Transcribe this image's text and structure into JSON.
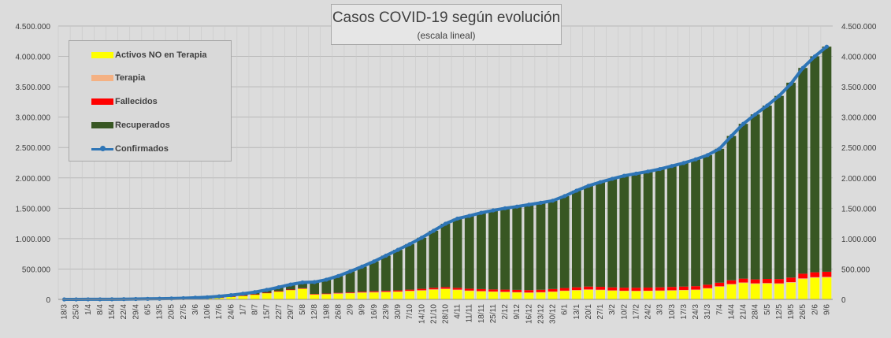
{
  "chart_data": {
    "type": "bar",
    "stacked": true,
    "title": "Casos COVID-19 según evolución",
    "subtitle": "(escala lineal)",
    "ylim": [
      0,
      4500000
    ],
    "y_ticks": [
      "0",
      "500.000",
      "1.000.000",
      "1.500.000",
      "2.000.000",
      "2.500.000",
      "3.000.000",
      "3.500.000",
      "4.000.000",
      "4.500.000"
    ],
    "y_tick_values": [
      0,
      500000,
      1000000,
      1500000,
      2000000,
      2500000,
      3000000,
      3500000,
      4000000,
      4500000
    ],
    "grid": true,
    "legend_position": "top-left",
    "categories": [
      "18/3",
      "25/3",
      "1/4",
      "8/4",
      "15/4",
      "22/4",
      "29/4",
      "6/5",
      "13/5",
      "20/5",
      "27/5",
      "3/6",
      "10/6",
      "17/6",
      "24/6",
      "1/7",
      "8/7",
      "15/7",
      "22/7",
      "29/7",
      "5/8",
      "12/8",
      "19/8",
      "26/8",
      "2/9",
      "9/9",
      "16/9",
      "23/9",
      "30/9",
      "7/10",
      "14/10",
      "21/10",
      "28/10",
      "4/11",
      "11/11",
      "18/11",
      "25/11",
      "2/12",
      "9/12",
      "16/12",
      "23/12",
      "30/12",
      "6/1",
      "13/1",
      "20/1",
      "27/1",
      "3/2",
      "10/2",
      "17/2",
      "24/2",
      "3/3",
      "10/3",
      "17/3",
      "24/3",
      "31/3",
      "7/4",
      "14/4",
      "21/4",
      "28/4",
      "5/5",
      "12/5",
      "19/5",
      "26/5",
      "2/6",
      "9/6"
    ],
    "series": [
      {
        "name": "Activos NO en Terapia",
        "color": "#ffff00",
        "kind": "bar",
        "values": [
          0,
          0,
          0,
          0,
          1000,
          2000,
          3000,
          4000,
          5000,
          7000,
          10000,
          15000,
          20000,
          30000,
          45000,
          60000,
          80000,
          105000,
          130000,
          155000,
          175000,
          80000,
          85000,
          95000,
          100000,
          110000,
          115000,
          120000,
          125000,
          135000,
          145000,
          160000,
          170000,
          155000,
          140000,
          132000,
          125000,
          120000,
          115000,
          110000,
          115000,
          125000,
          140000,
          150000,
          160000,
          155000,
          145000,
          140000,
          138000,
          140000,
          143000,
          148000,
          153000,
          158000,
          180000,
          210000,
          245000,
          270000,
          255000,
          260000,
          255000,
          275000,
          335000,
          355000,
          360000
        ]
      },
      {
        "name": "Terapia",
        "color": "#f4b183",
        "kind": "bar",
        "values": [
          0,
          0,
          0,
          0,
          0,
          0,
          0,
          0,
          0,
          0,
          0,
          1000,
          1000,
          2000,
          2000,
          2000,
          2000,
          3000,
          3000,
          3000,
          4000,
          4000,
          4000,
          5000,
          5000,
          5000,
          5000,
          5000,
          5000,
          6000,
          6000,
          6000,
          6000,
          6000,
          5000,
          5000,
          5000,
          5000,
          4000,
          4000,
          4000,
          4000,
          4000,
          4000,
          4000,
          4000,
          4000,
          3000,
          3000,
          3000,
          3000,
          3000,
          3000,
          4000,
          5000,
          6000,
          8000,
          9000,
          9000,
          9000,
          9000,
          10000,
          11000,
          11000,
          11000
        ]
      },
      {
        "name": "Fallecidos",
        "color": "#ff0000",
        "kind": "bar",
        "values": [
          0,
          0,
          0,
          0,
          0,
          0,
          0,
          0,
          0,
          0,
          0,
          1000,
          1000,
          1000,
          1000,
          2000,
          2000,
          2000,
          3000,
          4000,
          5000,
          6000,
          7000,
          8000,
          10000,
          12000,
          14000,
          16000,
          18000,
          20000,
          23000,
          25000,
          27000,
          29000,
          31000,
          33000,
          34000,
          36000,
          38000,
          39000,
          40000,
          42000,
          43000,
          45000,
          47000,
          48000,
          49000,
          50000,
          51000,
          52000,
          53000,
          54000,
          55000,
          56000,
          57000,
          59000,
          61000,
          63000,
          65000,
          68000,
          71000,
          74000,
          77000,
          80000,
          84000
        ]
      },
      {
        "name": "Recuperados",
        "color": "#385723",
        "kind": "bar",
        "values": [
          0,
          0,
          0,
          1000,
          1000,
          2000,
          3000,
          5000,
          6000,
          8000,
          10000,
          11000,
          13000,
          17000,
          22000,
          29000,
          36000,
          47000,
          64000,
          83000,
          95000,
          195000,
          229000,
          277000,
          345000,
          413000,
          491000,
          579000,
          667000,
          749000,
          841000,
          939000,
          1042000,
          1140000,
          1199000,
          1255000,
          1301000,
          1339000,
          1371000,
          1406000,
          1431000,
          1454000,
          1513000,
          1591000,
          1659000,
          1723000,
          1787000,
          1842000,
          1878000,
          1910000,
          1946000,
          1990000,
          2034000,
          2087000,
          2133000,
          2205000,
          2376000,
          2548000,
          2716000,
          2853000,
          3015000,
          3208000,
          3387000,
          3554000,
          3705000
        ]
      },
      {
        "name": "Confirmados",
        "color": "#2e75b6",
        "kind": "line",
        "values": [
          0,
          0,
          1000,
          1000,
          2000,
          4000,
          6000,
          9000,
          11000,
          15000,
          20000,
          28000,
          35000,
          50000,
          70000,
          93000,
          120000,
          157000,
          200000,
          245000,
          279000,
          285000,
          325000,
          385000,
          460000,
          540000,
          625000,
          720000,
          815000,
          910000,
          1015000,
          1130000,
          1245000,
          1330000,
          1375000,
          1425000,
          1465000,
          1500000,
          1528000,
          1559000,
          1590000,
          1625000,
          1700000,
          1790000,
          1870000,
          1930000,
          1985000,
          2035000,
          2070000,
          2105000,
          2145000,
          2195000,
          2245000,
          2305000,
          2375000,
          2480000,
          2690000,
          2890000,
          3045000,
          3190000,
          3350000,
          3550000,
          3810000,
          4000000,
          4160000
        ]
      }
    ]
  }
}
